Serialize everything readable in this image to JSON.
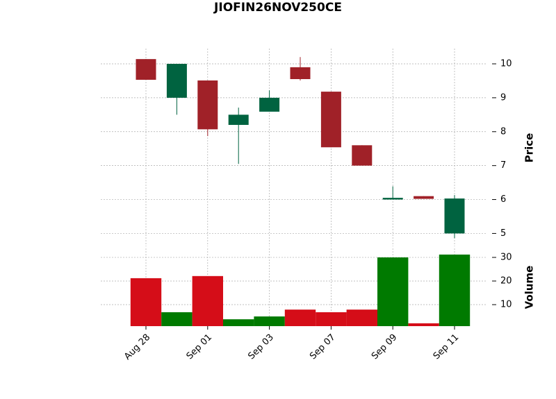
{
  "chart_data": {
    "type": "candlestick",
    "title": "JIOFIN26NOV250CE",
    "categories": [
      "Aug 28",
      null,
      "Sep 01",
      null,
      "Sep 03",
      null,
      "Sep 07",
      null,
      "Sep 09",
      null,
      "Sep 11"
    ],
    "open": [
      10.14,
      9.0,
      9.51,
      8.2,
      8.59,
      9.9,
      9.18,
      7.6,
      6.0,
      6.1,
      5.0
    ],
    "high": [
      10.14,
      10.0,
      9.51,
      8.71,
      9.22,
      10.2,
      9.18,
      7.6,
      6.39,
      6.1,
      6.13
    ],
    "low": [
      9.53,
      8.5,
      7.87,
      7.05,
      8.59,
      9.51,
      7.54,
      7.0,
      6.0,
      6.02,
      4.86
    ],
    "close": [
      9.53,
      10.0,
      8.07,
      8.5,
      9.0,
      9.55,
      7.54,
      7.0,
      6.05,
      6.02,
      6.03
    ],
    "volume": [
      21.2,
      6.8,
      22.1,
      3.8,
      5.0,
      7.9,
      6.8,
      7.9,
      30,
      2.1,
      31.2
    ],
    "ylabel": "Price",
    "volume_label": "Volume",
    "ylim": [
      4.62,
      10.45
    ],
    "yticks": [
      5,
      6,
      7,
      8,
      9,
      10
    ],
    "volume_ylim": [
      0.9,
      33.8
    ],
    "volume_yticks": [
      10,
      20,
      30
    ],
    "up_color": "#006340",
    "down_color": "#a02128",
    "volume_up_color": "#007a00",
    "volume_down_color": "#d50d18",
    "grid": true
  }
}
